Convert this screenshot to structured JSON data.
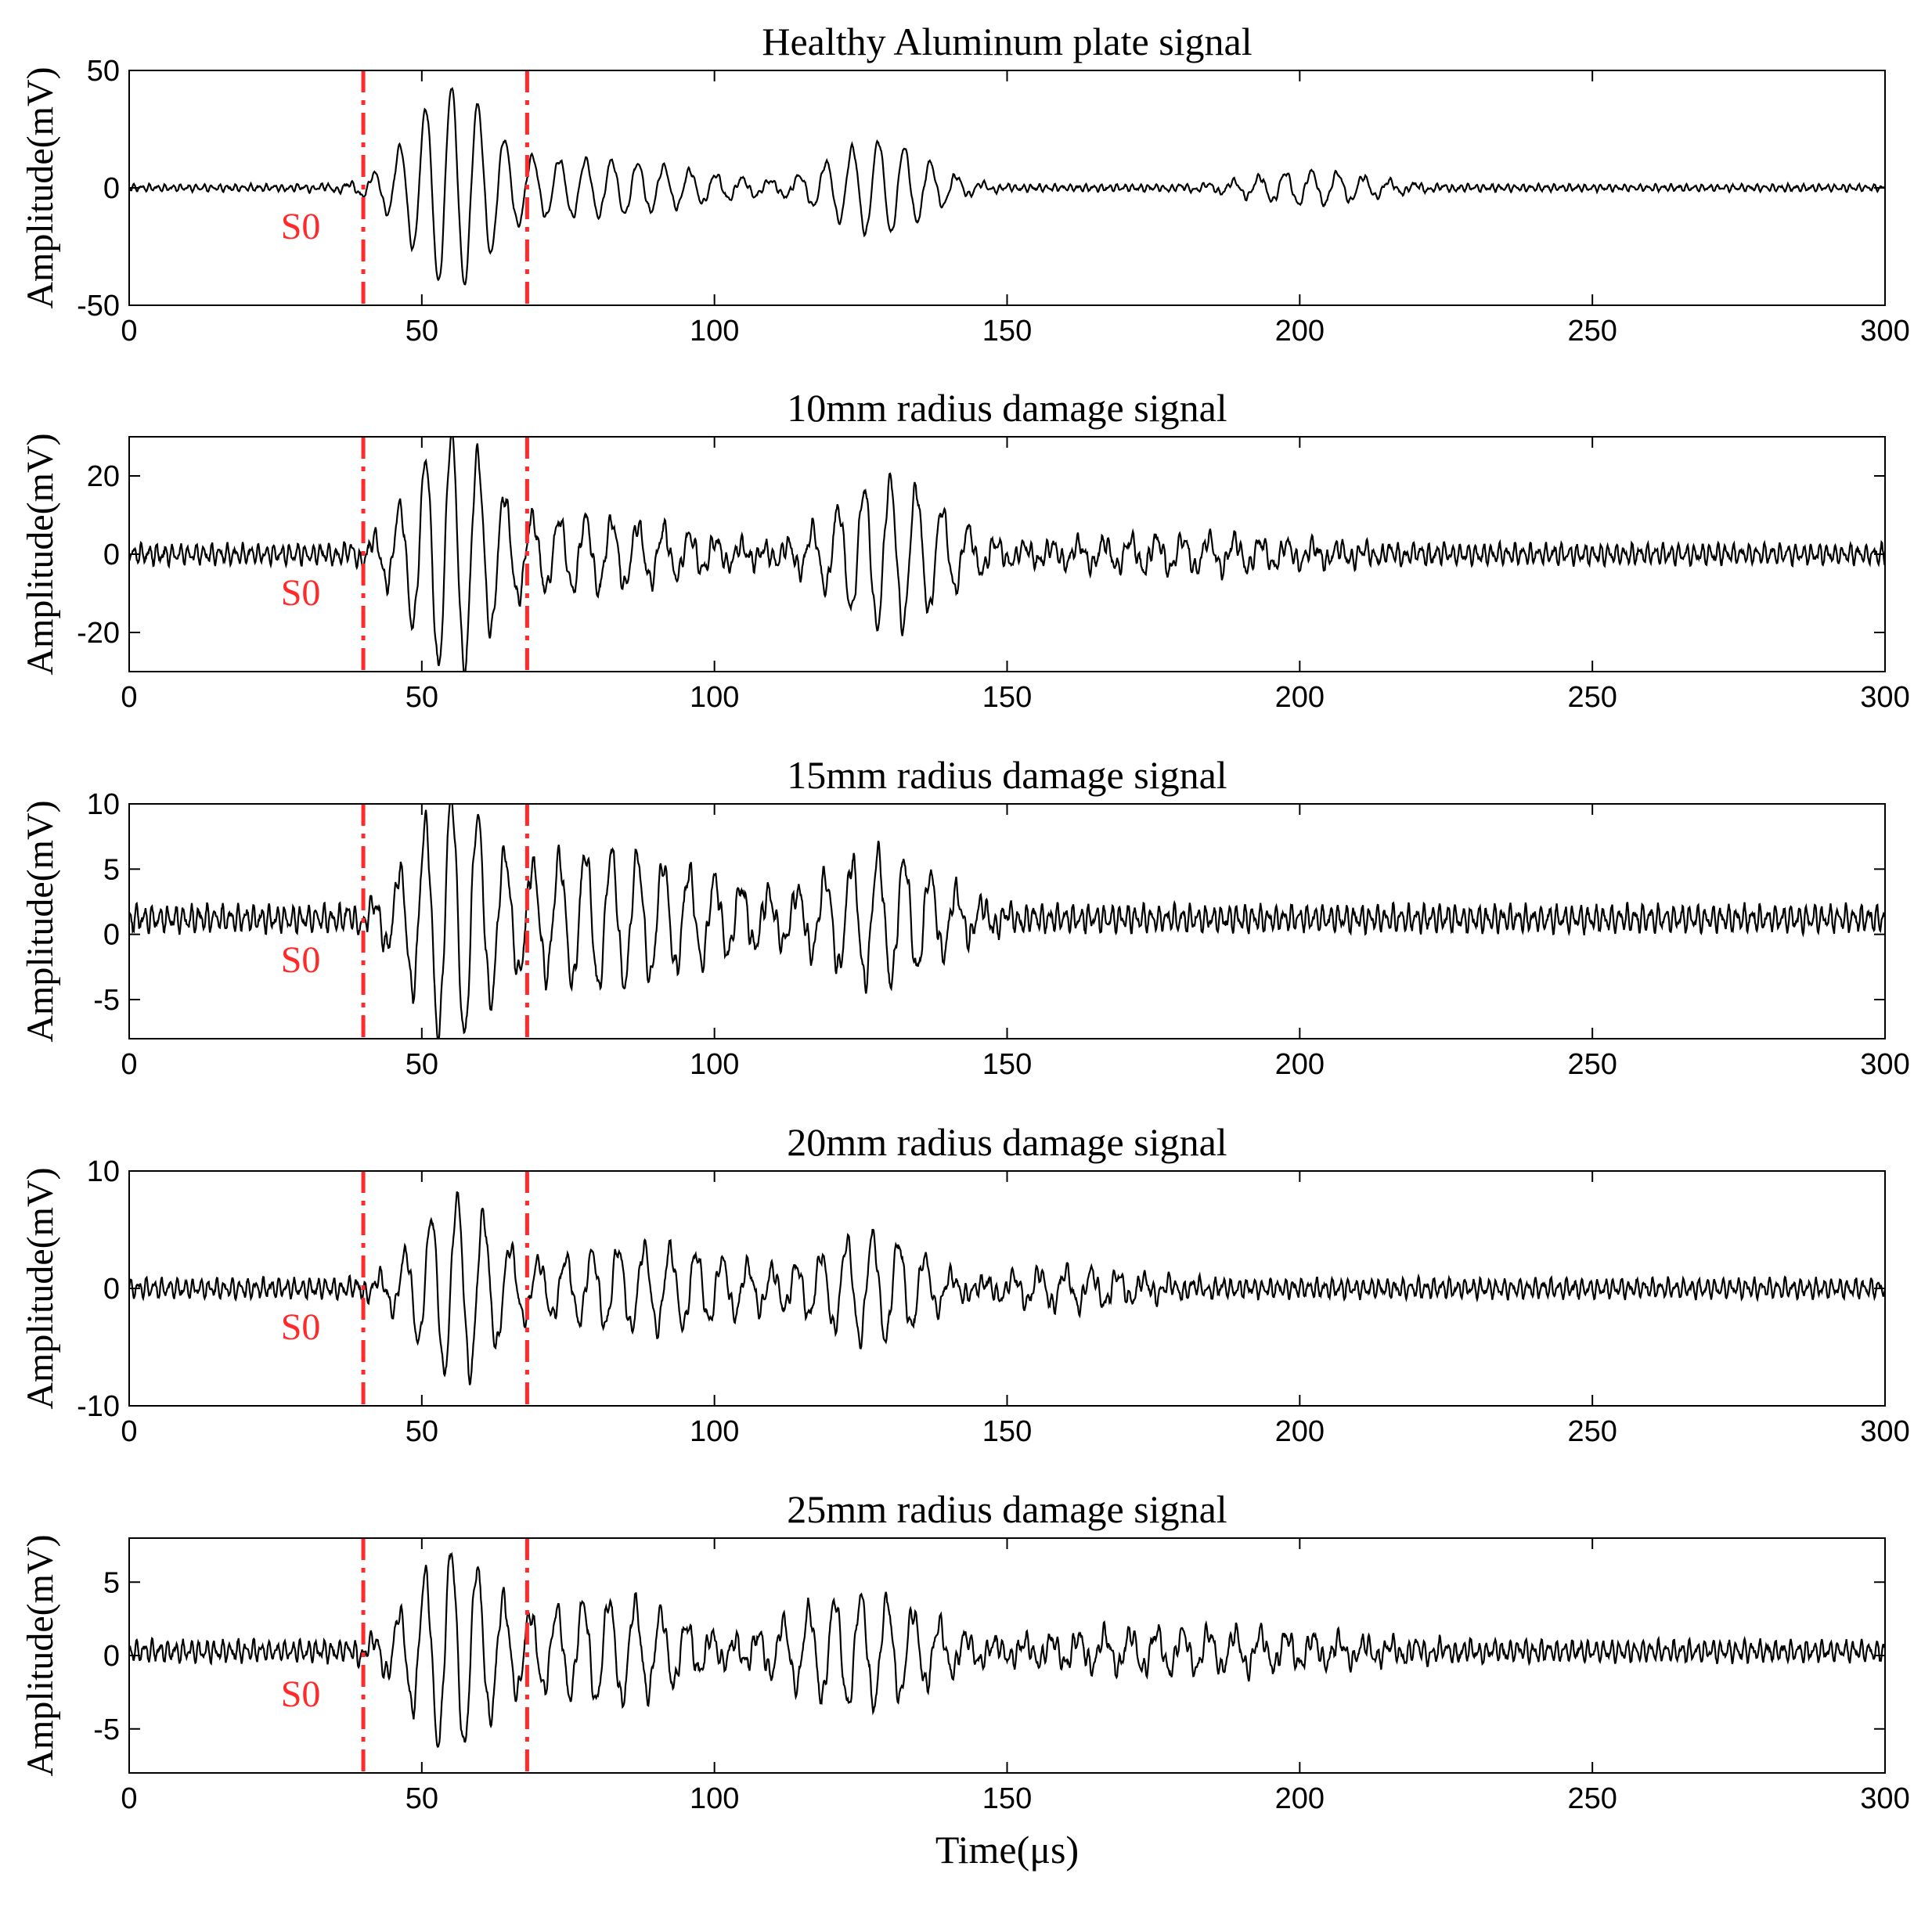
{
  "figure": {
    "xlabel": "Time(μs)"
  },
  "chart_data": [
    {
      "type": "line",
      "title": "Healthy Aluminum plate signal",
      "xlabel": "",
      "ylabel": "Amplitude(mV)",
      "xlim": [
        0,
        300
      ],
      "ylim": [
        -50,
        50
      ],
      "xticks": [
        0,
        50,
        100,
        150,
        200,
        250,
        300
      ],
      "yticks": [
        -50,
        0,
        50
      ],
      "marker_lines": [
        40,
        68
      ],
      "marker_label": "S0",
      "colors": {
        "line": "#000000",
        "marker": "#ff2a2a"
      },
      "series": [
        {
          "x_range": [
            0,
            300
          ],
          "wave": {
            "offset": 0,
            "noise": 1.6,
            "peaks": [
              {
                "center": 55,
                "amp": 40,
                "width": 6.5
              },
              {
                "center": 128,
                "amp": 20,
                "width": 8
              },
              {
                "center": 78,
                "amp": 12,
                "width": 18
              },
              {
                "center": 202,
                "amp": 7,
                "width": 10
              }
            ]
          }
        }
      ]
    },
    {
      "type": "line",
      "title": "10mm radius damage signal",
      "xlabel": "",
      "ylabel": "Amplitude(mV)",
      "xlim": [
        0,
        300
      ],
      "ylim": [
        -30,
        30
      ],
      "xticks": [
        0,
        50,
        100,
        150,
        200,
        250,
        300
      ],
      "yticks": [
        -20,
        0,
        20
      ],
      "marker_lines": [
        40,
        68
      ],
      "marker_label": "S0",
      "colors": {
        "line": "#000000",
        "marker": "#ff2a2a"
      },
      "series": [
        {
          "x_range": [
            0,
            300
          ],
          "wave": {
            "offset": 0,
            "noise": 2.8,
            "peaks": [
              {
                "center": 55,
                "amp": 29,
                "width": 6.5
              },
              {
                "center": 130,
                "amp": 19,
                "width": 9
              },
              {
                "center": 78,
                "amp": 9,
                "width": 16
              },
              {
                "center": 180,
                "amp": 4,
                "width": 20
              }
            ]
          }
        }
      ]
    },
    {
      "type": "line",
      "title": "15mm radius damage signal",
      "xlabel": "",
      "ylabel": "Amplitude(mV)",
      "xlim": [
        0,
        300
      ],
      "ylim": [
        -8,
        10
      ],
      "xticks": [
        0,
        50,
        100,
        150,
        200,
        250,
        300
      ],
      "yticks": [
        -5,
        0,
        5,
        10
      ],
      "marker_lines": [
        40,
        68
      ],
      "marker_label": "S0",
      "colors": {
        "line": "#000000",
        "marker": "#ff2a2a"
      },
      "series": [
        {
          "x_range": [
            0,
            300
          ],
          "wave": {
            "offset": 1.2,
            "noise": 1.1,
            "peaks": [
              {
                "center": 55,
                "amp": 9,
                "width": 6.5
              },
              {
                "center": 128,
                "amp": 5,
                "width": 10
              },
              {
                "center": 78,
                "amp": 4.5,
                "width": 12
              },
              {
                "center": 100,
                "amp": 2.2,
                "width": 14
              }
            ]
          }
        }
      ]
    },
    {
      "type": "line",
      "title": "20mm radius damage signal",
      "xlabel": "",
      "ylabel": "Amplitude(mV)",
      "xlim": [
        0,
        300
      ],
      "ylim": [
        -10,
        10
      ],
      "xticks": [
        0,
        50,
        100,
        150,
        200,
        250,
        300
      ],
      "yticks": [
        -10,
        0,
        10
      ],
      "marker_lines": [
        40,
        68
      ],
      "marker_label": "S0",
      "colors": {
        "line": "#000000",
        "marker": "#ff2a2a"
      },
      "series": [
        {
          "x_range": [
            0,
            300
          ],
          "wave": {
            "offset": 0,
            "noise": 0.9,
            "peaks": [
              {
                "center": 56,
                "amp": 7.5,
                "width": 6.5
              },
              {
                "center": 127,
                "amp": 4.5,
                "width": 9
              },
              {
                "center": 88,
                "amp": 3.5,
                "width": 16
              },
              {
                "center": 160,
                "amp": 1.5,
                "width": 12
              }
            ]
          }
        }
      ]
    },
    {
      "type": "line",
      "title": "25mm radius damage signal",
      "xlabel": "Time(μs)",
      "ylabel": "Amplitude(mV)",
      "xlim": [
        0,
        300
      ],
      "ylim": [
        -8,
        8
      ],
      "xticks": [
        0,
        50,
        100,
        150,
        200,
        250,
        300
      ],
      "yticks": [
        -5,
        0,
        5
      ],
      "marker_lines": [
        40,
        68
      ],
      "marker_label": "S0",
      "colors": {
        "line": "#000000",
        "marker": "#ff2a2a"
      },
      "series": [
        {
          "x_range": [
            0,
            300
          ],
          "wave": {
            "offset": 0.3,
            "noise": 0.8,
            "peaks": [
              {
                "center": 55,
                "amp": 6.5,
                "width": 6.5
              },
              {
                "center": 125,
                "amp": 3.8,
                "width": 12
              },
              {
                "center": 82,
                "amp": 3.5,
                "width": 12
              },
              {
                "center": 180,
                "amp": 1.3,
                "width": 25
              }
            ]
          }
        }
      ]
    }
  ]
}
